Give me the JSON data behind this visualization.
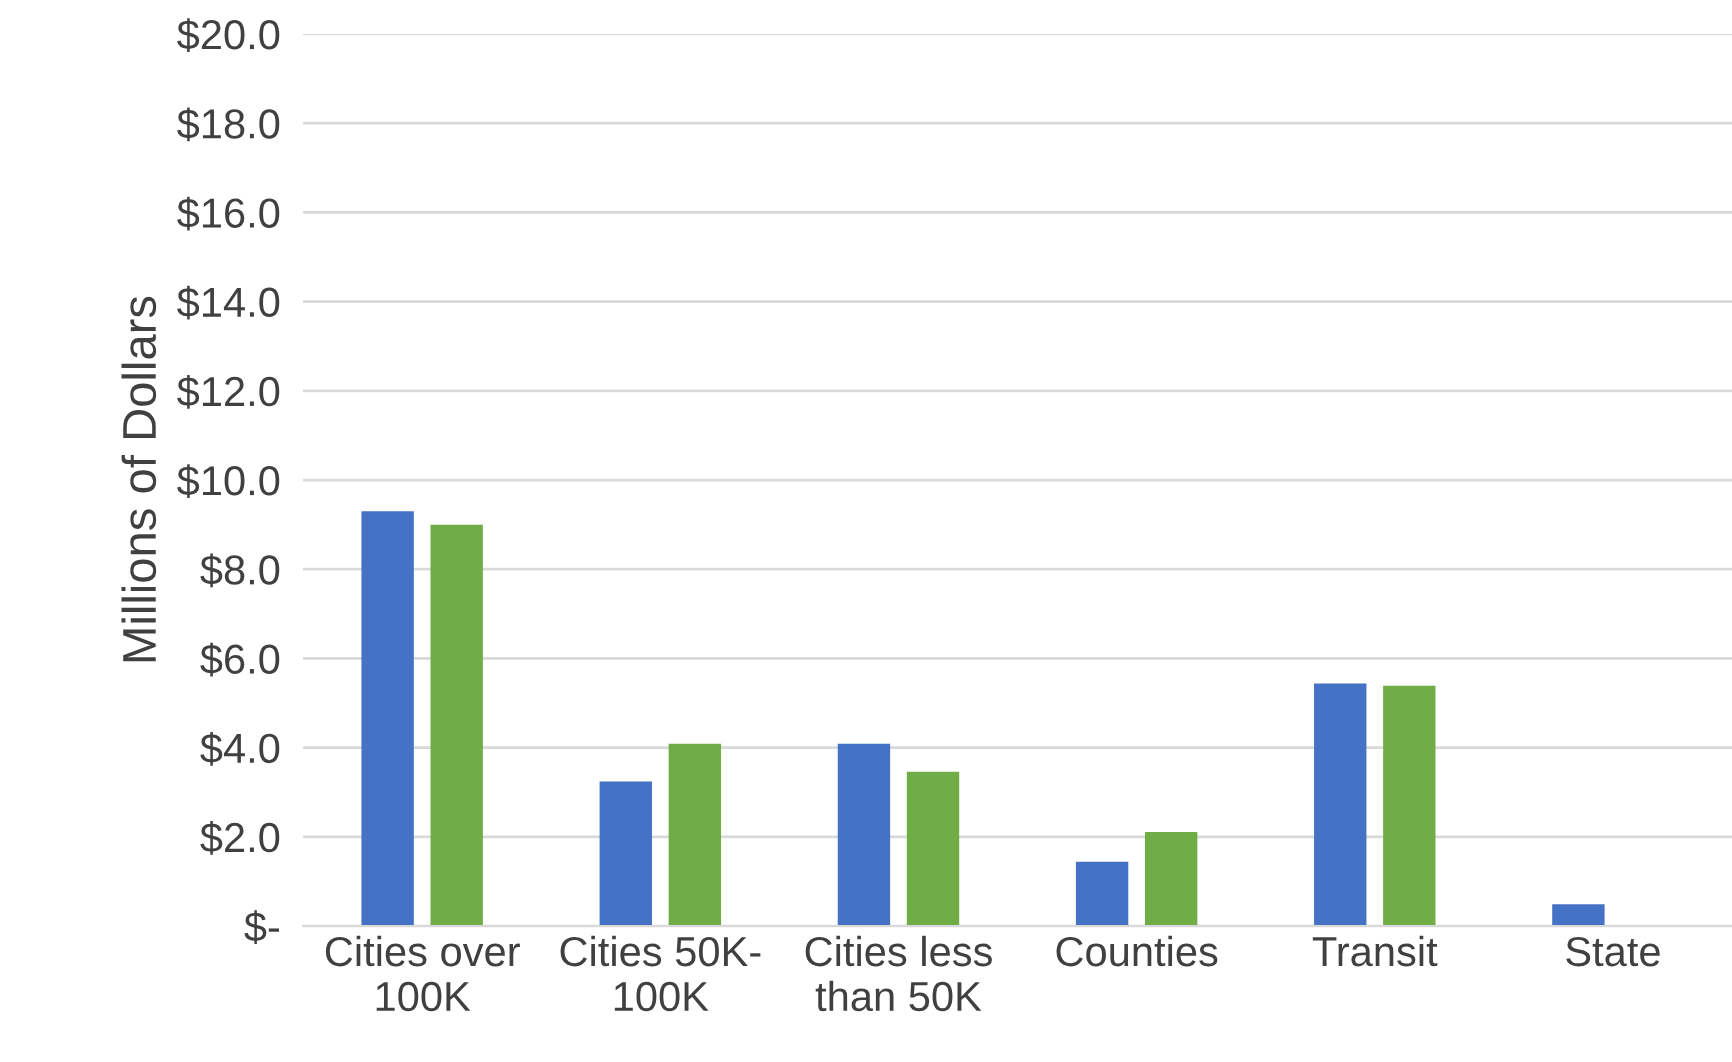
{
  "chart_data": {
    "type": "bar",
    "ylabel": "Millions of Dollars",
    "categories": [
      "Cities over\n100K",
      "Cities 50K-\n100K",
      "Cities less\nthan 50K",
      "Counties",
      "Transit",
      "State"
    ],
    "series": [
      {
        "color": "#4472c4",
        "values": [
          9.3,
          3.24,
          4.09,
          1.44,
          5.44,
          0.49
        ]
      },
      {
        "color": "#70ad47",
        "values": [
          9.0,
          4.09,
          3.46,
          2.11,
          5.39,
          null
        ]
      }
    ],
    "ylim": [
      0,
      20
    ],
    "yticks": [
      {
        "value": 0,
        "label": "$-"
      },
      {
        "value": 2,
        "label": "$2.0"
      },
      {
        "value": 4,
        "label": "$4.0"
      },
      {
        "value": 6,
        "label": "$6.0"
      },
      {
        "value": 8,
        "label": "$8.0"
      },
      {
        "value": 10,
        "label": "$10.0"
      },
      {
        "value": 12,
        "label": "$12.0"
      },
      {
        "value": 14,
        "label": "$14.0"
      },
      {
        "value": 16,
        "label": "$16.0"
      },
      {
        "value": 18,
        "label": "$18.0"
      },
      {
        "value": 20,
        "label": "$20.0"
      }
    ],
    "grid": "y",
    "legend": false
  }
}
